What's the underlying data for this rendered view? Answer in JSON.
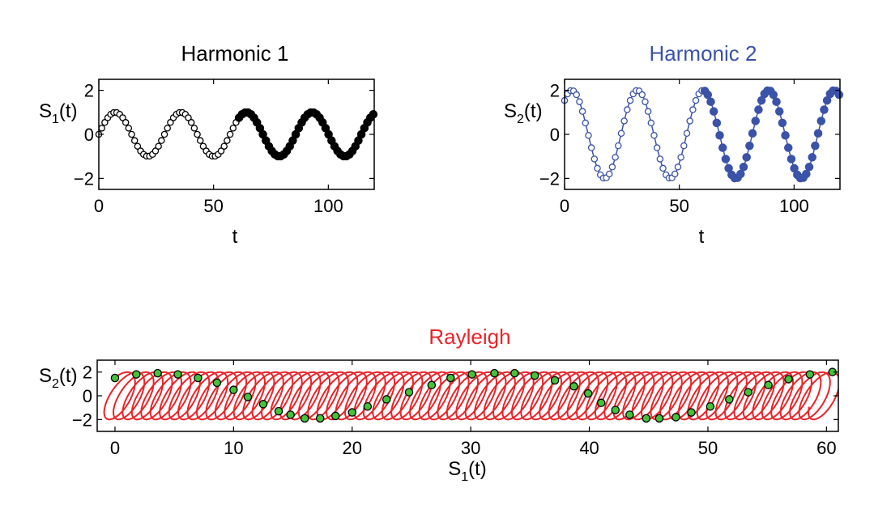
{
  "colors": {
    "black": "#000000",
    "blue": "#3a52a8",
    "red": "#e8242a",
    "green": "#44c23a",
    "white": "#ffffff"
  },
  "chart_data": [
    {
      "type": "line",
      "title": "Harmonic 1",
      "title_color": "#000000",
      "xlabel": "t",
      "ylabel": "S",
      "ylabel_sub": "1",
      "ylabel_suffix": "(t)",
      "xlim": [
        0,
        120
      ],
      "ylim": [
        -2.5,
        2.5
      ],
      "xticks": [
        0,
        50,
        100
      ],
      "yticks": [
        -2,
        0,
        2
      ],
      "grid": false,
      "series": [
        {
          "color": "#000000",
          "function": "sin(2*pi*t/28.6)",
          "amplitude": 1,
          "period": 28.6,
          "phase": 0,
          "t_start": 0,
          "t_end": 120,
          "t_step": 1.3,
          "markers_open_until": 60
        }
      ]
    },
    {
      "type": "line",
      "title": "Harmonic 2",
      "title_color": "#3a52a8",
      "xlabel": "t",
      "ylabel": "S",
      "ylabel_sub": "2",
      "ylabel_suffix": "(t)",
      "xlim": [
        0,
        120
      ],
      "ylim": [
        -2.5,
        2.5
      ],
      "xticks": [
        0,
        50,
        100
      ],
      "yticks": [
        -2,
        0,
        2
      ],
      "grid": false,
      "series": [
        {
          "color": "#3a52a8",
          "function": "2*sin(2*pi*t/28.6 + 0.88)",
          "amplitude": 2,
          "period": 28.6,
          "phase": 0.88,
          "t_start": 0,
          "t_end": 120,
          "t_step": 1.3,
          "markers_open_until": 60
        }
      ]
    },
    {
      "type": "line",
      "title": "Rayleigh",
      "title_color": "#e8242a",
      "xlabel": "S",
      "xlabel_sub": "1",
      "xlabel_suffix": "(t)",
      "ylabel": "S",
      "ylabel_sub": "2",
      "ylabel_suffix": "(t)",
      "xlim": [
        -1.5,
        61
      ],
      "ylim": [
        -3,
        3
      ],
      "xticks": [
        0,
        10,
        20,
        30,
        40,
        50,
        60
      ],
      "yticks": [
        -2,
        0,
        2
      ],
      "ytick_labels": [
        "−2",
        "0",
        "2"
      ],
      "grid": false,
      "series": [
        {
          "name": "",
          "color": "#e8242a",
          "kind": "curve",
          "description": "drifting loops: x = 0.5*t + 1.5*sin(theta), y = 2*sin(theta + 0.88)",
          "drift_per_t": 0.5,
          "x_amplitude": 1.5,
          "y_amplitude": 2,
          "period": 28.6,
          "t_range": [
            0,
            120
          ]
        },
        {
          "name": "",
          "color": "#44c23a",
          "kind": "points",
          "points": [
            {
              "x": 0.0,
              "y": 1.5
            },
            {
              "x": 1.8,
              "y": 1.8
            },
            {
              "x": 3.6,
              "y": 1.9
            },
            {
              "x": 5.3,
              "y": 1.8
            },
            {
              "x": 7.0,
              "y": 1.5
            },
            {
              "x": 8.6,
              "y": 1.1
            },
            {
              "x": 10.0,
              "y": 0.5
            },
            {
              "x": 11.2,
              "y": -0.1
            },
            {
              "x": 12.5,
              "y": -0.7
            },
            {
              "x": 13.8,
              "y": -1.3
            },
            {
              "x": 14.8,
              "y": -1.6
            },
            {
              "x": 16.0,
              "y": -1.9
            },
            {
              "x": 17.3,
              "y": -1.9
            },
            {
              "x": 18.6,
              "y": -1.7
            },
            {
              "x": 20.0,
              "y": -1.4
            },
            {
              "x": 21.3,
              "y": -0.9
            },
            {
              "x": 22.9,
              "y": -0.3
            },
            {
              "x": 24.8,
              "y": 0.3
            },
            {
              "x": 26.7,
              "y": 0.9
            },
            {
              "x": 28.3,
              "y": 1.5
            },
            {
              "x": 30.1,
              "y": 1.8
            },
            {
              "x": 32.0,
              "y": 1.9
            },
            {
              "x": 33.7,
              "y": 1.9
            },
            {
              "x": 35.4,
              "y": 1.7
            },
            {
              "x": 37.1,
              "y": 1.3
            },
            {
              "x": 38.7,
              "y": 0.8
            },
            {
              "x": 39.9,
              "y": 0.2
            },
            {
              "x": 41.0,
              "y": -0.6
            },
            {
              "x": 42.2,
              "y": -1.2
            },
            {
              "x": 43.4,
              "y": -1.6
            },
            {
              "x": 44.8,
              "y": -1.9
            },
            {
              "x": 45.9,
              "y": -1.9
            },
            {
              "x": 47.3,
              "y": -1.8
            },
            {
              "x": 48.6,
              "y": -1.4
            },
            {
              "x": 50.2,
              "y": -0.9
            },
            {
              "x": 51.8,
              "y": -0.3
            },
            {
              "x": 53.4,
              "y": 0.3
            },
            {
              "x": 55.1,
              "y": 0.9
            },
            {
              "x": 56.8,
              "y": 1.4
            },
            {
              "x": 58.6,
              "y": 1.8
            },
            {
              "x": 60.5,
              "y": 2.0
            }
          ]
        }
      ]
    }
  ]
}
